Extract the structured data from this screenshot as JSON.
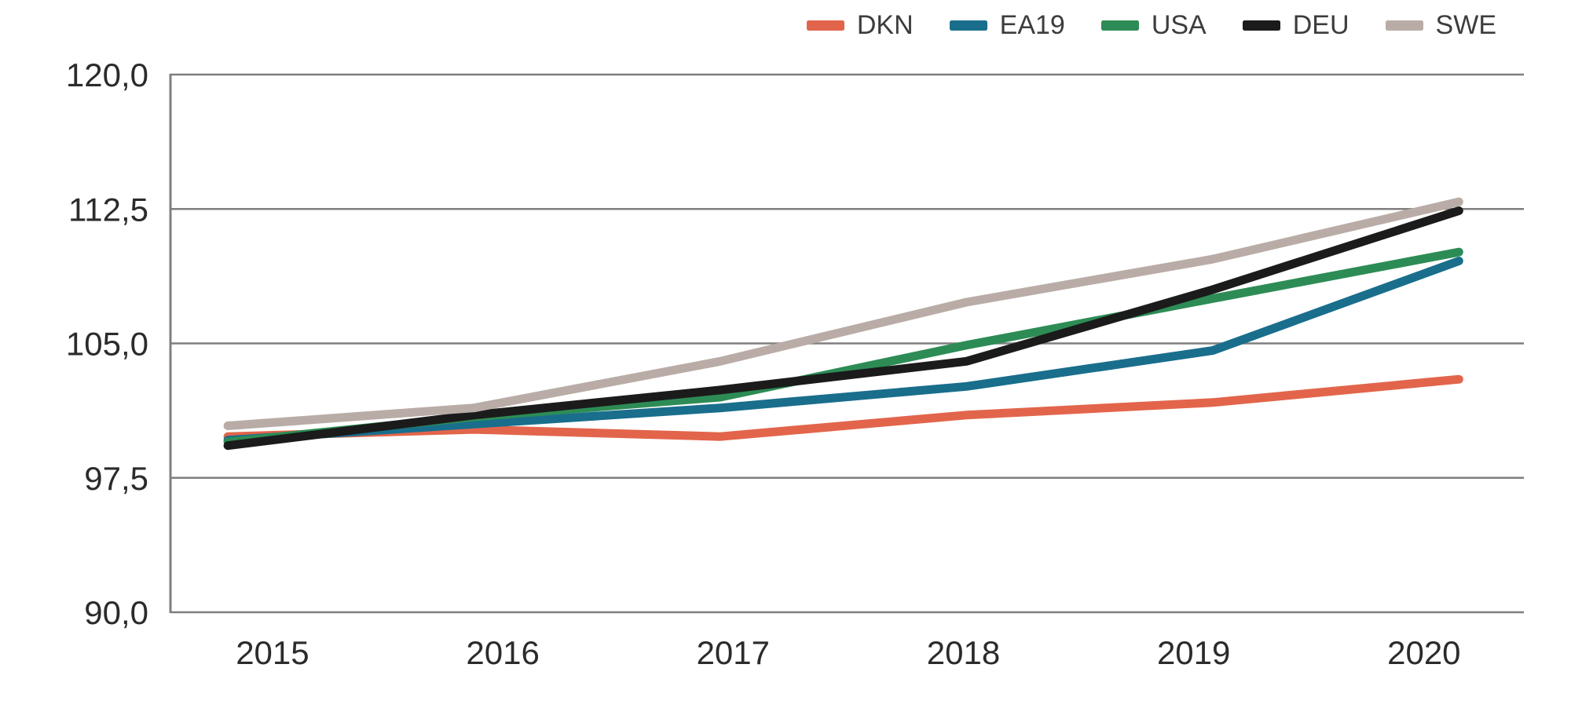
{
  "chart_data": {
    "type": "line",
    "categories": [
      "2015",
      "2016",
      "2017",
      "2018",
      "2019",
      "2020"
    ],
    "series": [
      {
        "name": "DKN",
        "color": "#e2654b",
        "values": [
          99.8,
          100.2,
          99.8,
          101.0,
          101.7,
          103.0
        ]
      },
      {
        "name": "EA19",
        "color": "#196e8c",
        "values": [
          99.6,
          100.5,
          101.4,
          102.6,
          104.6,
          109.6
        ]
      },
      {
        "name": "USA",
        "color": "#2d8c55",
        "values": [
          99.5,
          100.9,
          102.0,
          104.9,
          107.5,
          110.1
        ]
      },
      {
        "name": "DEU",
        "color": "#1b1b1b",
        "values": [
          99.3,
          101.0,
          102.4,
          104.0,
          108.0,
          112.4
        ]
      },
      {
        "name": "SWE",
        "color": "#b9aca6",
        "values": [
          100.4,
          101.4,
          104.0,
          107.3,
          109.7,
          112.9
        ]
      }
    ],
    "y_axis": {
      "ticks": [
        120,
        112.5,
        105,
        97.5,
        90
      ],
      "tick_labels": [
        "120,0",
        "112,5",
        "105,0",
        "97,5",
        "90,0"
      ],
      "ylim": [
        90,
        120
      ]
    },
    "x_axis": {
      "tick_labels": [
        "2015",
        "2016",
        "2017",
        "2018",
        "2019",
        "2020"
      ]
    },
    "legend": {
      "position": "top-right",
      "labels": [
        "DKN",
        "EA19",
        "USA",
        "DEU",
        "SWE"
      ]
    },
    "grid": true
  },
  "styles": {
    "background": "#ffffff",
    "grid_color": "#7f7f7f",
    "axis_label_color": "#2b2b2b",
    "legend_text_color": "#3c3c3c",
    "line_width": 11,
    "grid_width": 2.5
  }
}
